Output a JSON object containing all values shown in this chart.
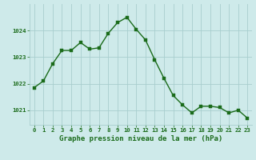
{
  "x": [
    0,
    1,
    2,
    3,
    4,
    5,
    6,
    7,
    8,
    9,
    10,
    11,
    12,
    13,
    14,
    15,
    16,
    17,
    18,
    19,
    20,
    21,
    22,
    23
  ],
  "y": [
    1021.85,
    1022.1,
    1022.75,
    1023.25,
    1023.25,
    1023.55,
    1023.3,
    1023.35,
    1023.9,
    1024.3,
    1024.5,
    1024.05,
    1023.65,
    1022.9,
    1022.2,
    1021.55,
    1021.2,
    1020.9,
    1021.15,
    1021.15,
    1021.1,
    1020.9,
    1021.0,
    1020.7
  ],
  "line_color": "#1a6b1a",
  "marker_color": "#1a6b1a",
  "bg_color": "#ceeaea",
  "grid_color": "#a8cece",
  "axis_label_color": "#1a6b1a",
  "tick_color": "#1a6b1a",
  "xlabel": "Graphe pression niveau de la mer (hPa)",
  "xlim": [
    -0.5,
    23.5
  ],
  "ylim": [
    1020.45,
    1025.0
  ],
  "yticks": [
    1021,
    1022,
    1023,
    1024
  ],
  "xticks": [
    0,
    1,
    2,
    3,
    4,
    5,
    6,
    7,
    8,
    9,
    10,
    11,
    12,
    13,
    14,
    15,
    16,
    17,
    18,
    19,
    20,
    21,
    22,
    23
  ],
  "marker_size": 2.5,
  "line_width": 1.0,
  "tick_fontsize": 5.2,
  "ylabel_fontsize": 6.0,
  "xlabel_fontsize": 6.5
}
